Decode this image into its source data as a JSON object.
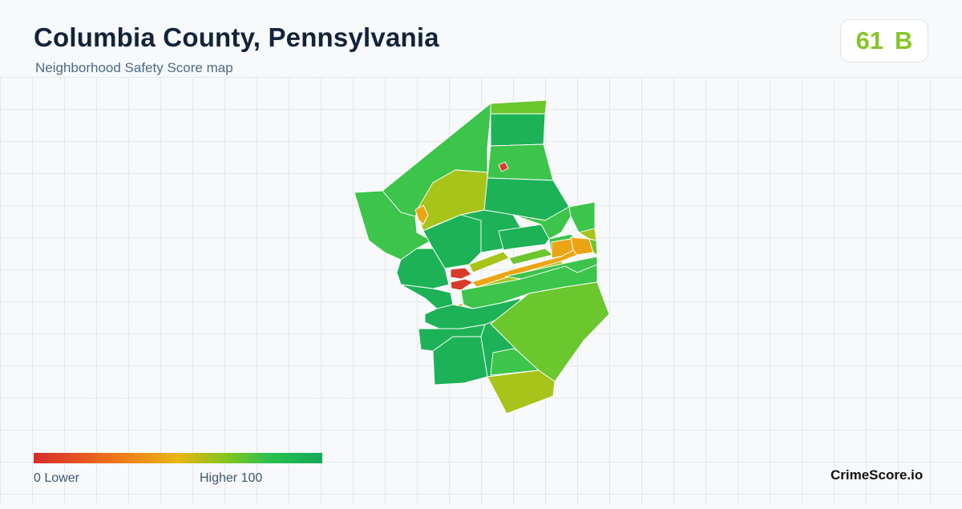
{
  "header": {
    "title": "Columbia County, Pennsylvania",
    "subtitle": "Neighborhood Safety Score map"
  },
  "score": {
    "value": "61",
    "grade": "B",
    "color": "#86c52a"
  },
  "legend": {
    "min_label": "0  Lower",
    "max_label": "Higher  100",
    "colors": [
      "#d72b2b",
      "#f07a1a",
      "#e8b614",
      "#7cc61f",
      "#28c04f",
      "#17a85a"
    ]
  },
  "brand": "CrimeScore.io",
  "map": {
    "colors": {
      "dark_green": "#1db257",
      "green": "#3cc44b",
      "lime": "#6cc62e",
      "yellow_green": "#a8c31a",
      "orange": "#eba514",
      "red": "#d93b2b"
    }
  }
}
